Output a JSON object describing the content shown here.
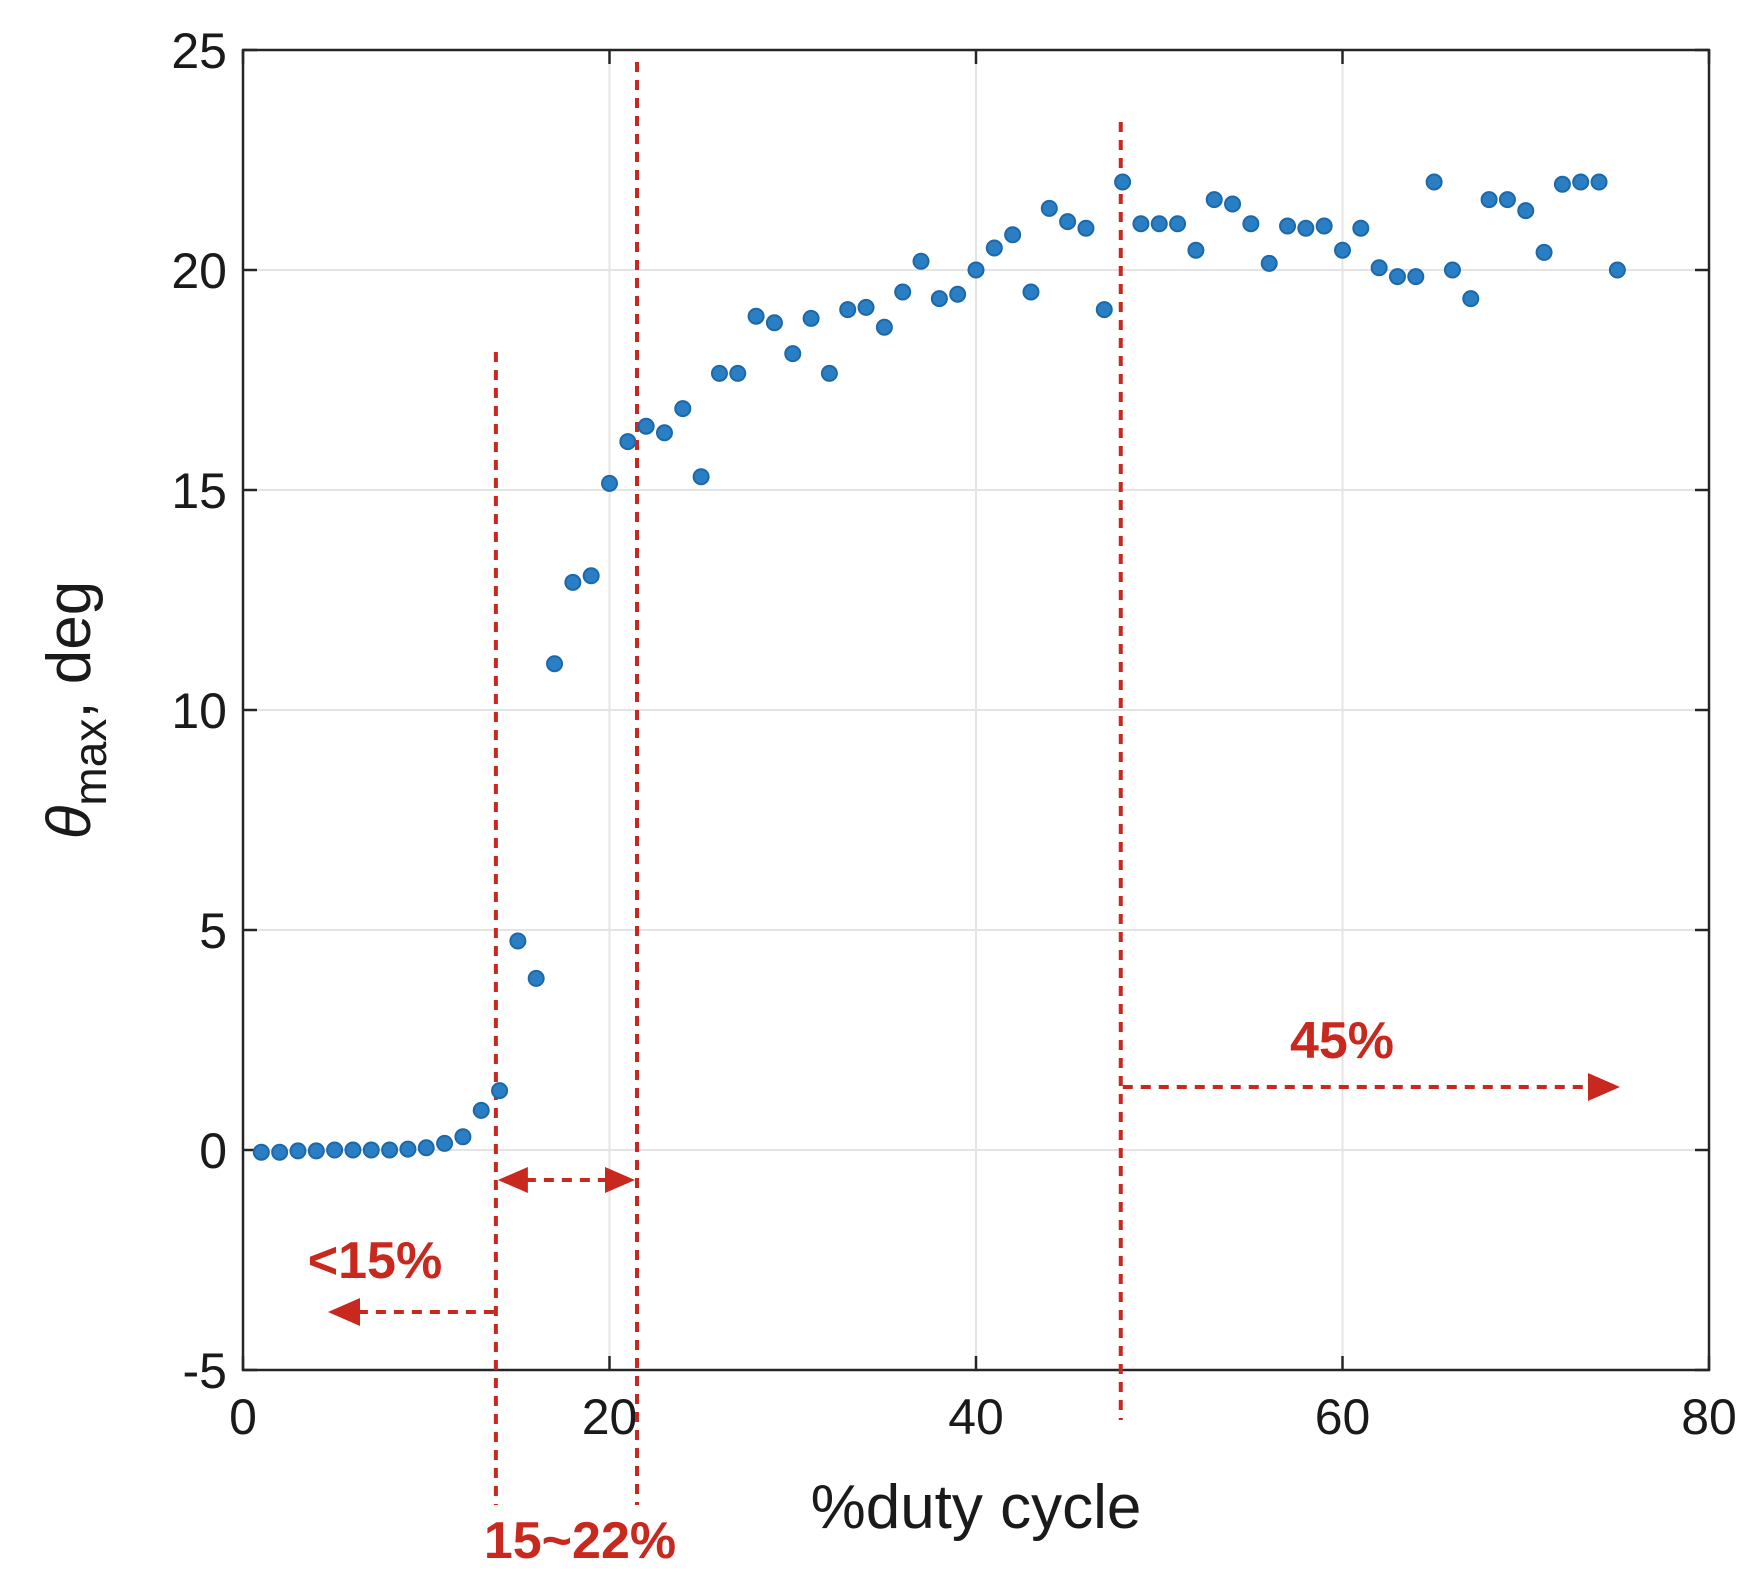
{
  "chart_data": {
    "type": "scatter",
    "title": "",
    "xlabel": "%duty cycle",
    "ylabel_symbol": "θ",
    "ylabel_subscript": "max",
    "ylabel_rest": ", deg",
    "xlim": [
      0,
      80
    ],
    "ylim": [
      -5,
      25
    ],
    "xticks": [
      0,
      20,
      40,
      60,
      80
    ],
    "yticks": [
      -5,
      0,
      5,
      10,
      15,
      20,
      25
    ],
    "grid": true,
    "marker_color": "#2a7fc4",
    "annotation_color": "#c8281e",
    "series": [
      {
        "name": "theta_max",
        "x": [
          1,
          2,
          3,
          4,
          5,
          6,
          7,
          8,
          9,
          10,
          11,
          12,
          13,
          14,
          15,
          16,
          17,
          18,
          19,
          20,
          21,
          22,
          23,
          24,
          25,
          26,
          27,
          28,
          29,
          30,
          31,
          32,
          33,
          34,
          35,
          36,
          37,
          38,
          39,
          40,
          41,
          42,
          43,
          44,
          45,
          46,
          47,
          48,
          49,
          50,
          51,
          52,
          53,
          54,
          55,
          56,
          57,
          58,
          59,
          60,
          61,
          62,
          63,
          64,
          65,
          66,
          67,
          68,
          69,
          70,
          71,
          72,
          73,
          74,
          75
        ],
        "y": [
          -0.05,
          -0.05,
          -0.02,
          -0.02,
          0,
          0,
          0,
          0,
          0.02,
          0.05,
          0.15,
          0.3,
          0.9,
          1.35,
          4.75,
          3.9,
          11.05,
          12.9,
          13.05,
          15.15,
          16.1,
          16.45,
          16.3,
          16.85,
          15.3,
          17.65,
          17.65,
          18.95,
          18.8,
          18.1,
          18.9,
          17.65,
          19.1,
          19.15,
          18.7,
          19.5,
          20.2,
          19.35,
          19.45,
          20.0,
          20.5,
          20.8,
          19.5,
          21.4,
          21.1,
          20.95,
          19.1,
          22.0,
          21.05,
          21.05,
          21.05,
          20.45,
          21.6,
          21.5,
          21.05,
          20.15,
          21.0,
          20.95,
          21.0,
          20.45,
          20.95,
          20.05,
          19.85,
          19.85,
          22.0,
          20.0,
          19.35,
          21.6,
          21.6,
          21.35,
          20.4,
          21.95,
          22.0,
          22.0,
          20.0
        ]
      }
    ],
    "annotations": [
      {
        "label": "<15%",
        "boundary_x": 13.8,
        "direction": "left"
      },
      {
        "label": "15~22%",
        "from_x": 13.8,
        "to_x": 21.5
      },
      {
        "label": "45%",
        "boundary_x": 47.9,
        "direction": "right"
      }
    ]
  }
}
